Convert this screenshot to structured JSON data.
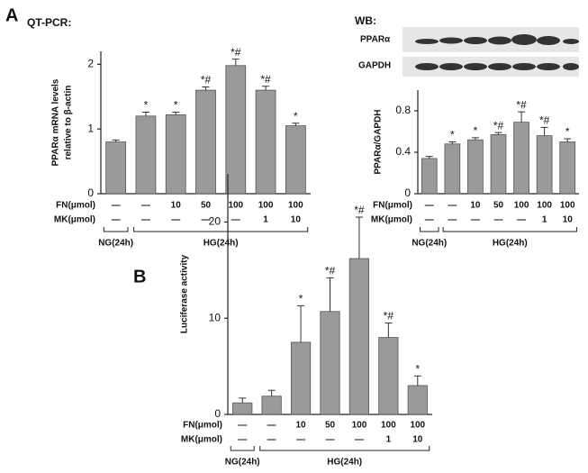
{
  "chart_data": [
    {
      "type": "bar",
      "panel": "A",
      "title": "QT-PCR:",
      "y_label": [
        "PPARα mRNA levels",
        "relative to β-actin"
      ],
      "categories": [
        null,
        null,
        null,
        null,
        null,
        null,
        null
      ],
      "values": [
        0.8,
        1.2,
        1.22,
        1.6,
        1.98,
        1.6,
        1.05
      ],
      "errors": [
        0.03,
        0.06,
        0.04,
        0.05,
        0.1,
        0.06,
        0.04
      ],
      "value_labels": [
        null,
        "*",
        "*",
        "*#",
        "*#",
        "*#",
        "*"
      ],
      "color": "#9a9a9a",
      "ylim": [
        0,
        2.2
      ],
      "yticks": [
        0,
        1,
        2
      ],
      "rows": [
        {
          "name": "FN(μmol)",
          "cells": [
            "—",
            "—",
            "10",
            "50",
            "100",
            "100",
            "100"
          ]
        },
        {
          "name": "MK(μmol)",
          "cells": [
            "—",
            "—",
            "—",
            "—",
            "—",
            "1",
            "10"
          ]
        }
      ],
      "groups": [
        "NG(24h)",
        "HG(24h)"
      ]
    },
    {
      "type": "bar",
      "title": "WB:",
      "blot_labels": [
        "PPARα",
        "GAPDH"
      ],
      "y_label": [
        "PPARα/GAPDH"
      ],
      "categories": [
        null,
        null,
        null,
        null,
        null,
        null,
        null
      ],
      "values": [
        0.34,
        0.48,
        0.52,
        0.57,
        0.69,
        0.56,
        0.5
      ],
      "errors": [
        0.02,
        0.02,
        0.02,
        0.02,
        0.1,
        0.08,
        0.03
      ],
      "value_labels": [
        null,
        "*",
        "*",
        "*#",
        "*#",
        "*#",
        "*"
      ],
      "color": "#9a9a9a",
      "ylim": [
        0,
        1
      ],
      "yticks": [
        0,
        0.4,
        0.8
      ],
      "rows": [
        {
          "name": "FN(μmol)",
          "cells": [
            "—",
            "—",
            "10",
            "50",
            "100",
            "100",
            "100"
          ]
        },
        {
          "name": "MK(μmol)",
          "cells": [
            "—",
            "—",
            "—",
            "—",
            "—",
            "1",
            "10"
          ]
        }
      ],
      "groups": [
        "NG(24h)",
        "HG(24h)"
      ]
    },
    {
      "type": "bar",
      "panel": "B",
      "y_label": [
        "Luciferase activity"
      ],
      "categories": [
        null,
        null,
        null,
        null,
        null,
        null,
        null
      ],
      "values": [
        1.2,
        1.9,
        7.5,
        10.7,
        16.2,
        8,
        3
      ],
      "errors": [
        0.5,
        0.6,
        3.8,
        3.5,
        4.3,
        1.5,
        1
      ],
      "value_labels": [
        null,
        null,
        "*",
        "*#",
        "*#",
        "*#",
        "*"
      ],
      "color": "#9a9a9a",
      "ylim": [
        0,
        25
      ],
      "yticks": [
        0,
        10,
        20
      ],
      "rows": [
        {
          "name": "FN(μmol)",
          "cells": [
            "—",
            "—",
            "10",
            "50",
            "100",
            "100",
            "100"
          ]
        },
        {
          "name": "MK(μmol)",
          "cells": [
            "—",
            "—",
            "—",
            "—",
            "—",
            "1",
            "10"
          ]
        }
      ],
      "groups": [
        "NG(24h)",
        "HG(24h)"
      ]
    }
  ]
}
